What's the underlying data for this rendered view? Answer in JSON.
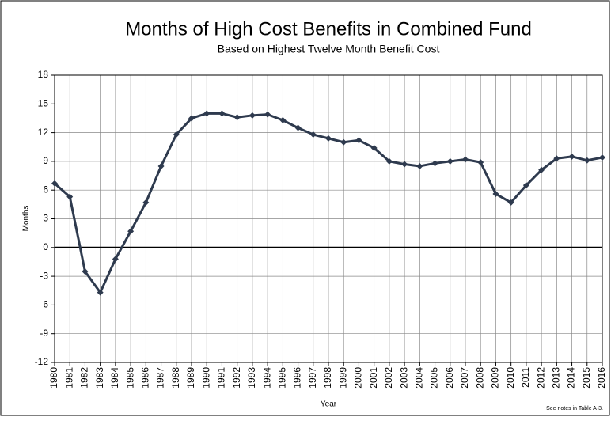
{
  "chart_data": {
    "type": "line",
    "title": "Months of High Cost Benefits in Combined Fund",
    "subtitle": "Based on Highest Twelve Month Benefit Cost",
    "y_label": "Months",
    "x_label": "Year",
    "note": "See notes  in Table A-3.",
    "categories": [
      "1980",
      "1981",
      "1982",
      "1983",
      "1984",
      "1985",
      "1986",
      "1987",
      "1988",
      "1989",
      "1990",
      "1991",
      "1992",
      "1993",
      "1994",
      "1995",
      "1996",
      "1997",
      "1998",
      "1999",
      "2000",
      "2001",
      "2002",
      "2003",
      "2004",
      "2005",
      "2006",
      "2007",
      "2008",
      "2009",
      "2010",
      "2011",
      "2012",
      "2013",
      "2014",
      "2015",
      "2016"
    ],
    "series": [
      {
        "color": "#2e3a4e",
        "values": [
          6.7,
          5.3,
          -2.5,
          -4.7,
          -1.2,
          1.7,
          4.7,
          8.5,
          11.8,
          13.5,
          14.0,
          14.0,
          13.6,
          13.8,
          13.9,
          13.3,
          12.5,
          11.8,
          11.4,
          11.0,
          11.2,
          10.4,
          9.0,
          8.7,
          8.5,
          8.8,
          9.0,
          9.2,
          8.9,
          5.6,
          4.7,
          6.5,
          8.1,
          9.3,
          9.5,
          9.1,
          9.4
        ]
      }
    ],
    "ylim": [
      -12,
      18
    ],
    "yticks": [
      -12,
      -9,
      -6,
      -3,
      0,
      3,
      6,
      9,
      12,
      15,
      18
    ],
    "grid": true
  }
}
